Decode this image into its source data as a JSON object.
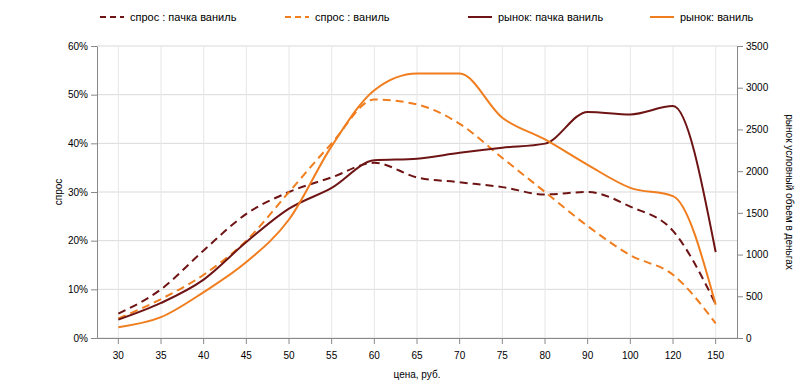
{
  "chart_data": {
    "type": "line",
    "x_label": "цена, руб.",
    "y_label": "спрос",
    "y2_label": "рынок условный объем в деньгах",
    "categories": [
      30,
      35,
      40,
      45,
      50,
      55,
      60,
      65,
      70,
      75,
      80,
      90,
      100,
      120,
      150
    ],
    "ylim": [
      0,
      60
    ],
    "yticks": [
      {
        "value": 0,
        "label": "0%"
      },
      {
        "value": 10,
        "label": "10%"
      },
      {
        "value": 20,
        "label": "20%"
      },
      {
        "value": 30,
        "label": "30%"
      },
      {
        "value": 40,
        "label": "40%"
      },
      {
        "value": 50,
        "label": "50%"
      },
      {
        "value": 60,
        "label": "60%"
      }
    ],
    "y2lim": [
      0,
      3500
    ],
    "y2ticks": [
      0,
      500,
      1000,
      1500,
      2000,
      2500,
      3000,
      3500
    ],
    "grid": true,
    "legend": "top",
    "series": [
      {
        "name": "спрос : пачка ваниль",
        "color": "#6e1414",
        "line_style": "dashed",
        "values": [
          5,
          10,
          18,
          25.5,
          30,
          33,
          36,
          33,
          32,
          31,
          29.5,
          30,
          27,
          22,
          7
        ]
      },
      {
        "name": "спрос : ваниль",
        "color": "#f07d1e",
        "line_style": "dashed",
        "values": [
          4,
          8,
          13,
          20,
          30,
          40,
          49,
          48,
          44,
          37,
          30,
          23,
          17,
          13,
          3
        ]
      },
      {
        "name": "рынок: пачка ваниль",
        "color": "#6e1414",
        "line_style": "solid",
        "axis": "y2",
        "values": [
          220,
          420,
          700,
          1150,
          1550,
          1800,
          2130,
          2150,
          2220,
          2280,
          2330,
          2710,
          2680,
          2780,
          1030
        ]
      },
      {
        "name": "рынок: ваниль",
        "color": "#f07d1e",
        "line_style": "solid",
        "axis": "y2",
        "values": [
          130,
          250,
          550,
          910,
          1420,
          2300,
          2970,
          3170,
          3170,
          2640,
          2380,
          2075,
          1800,
          1700,
          400
        ]
      }
    ]
  }
}
